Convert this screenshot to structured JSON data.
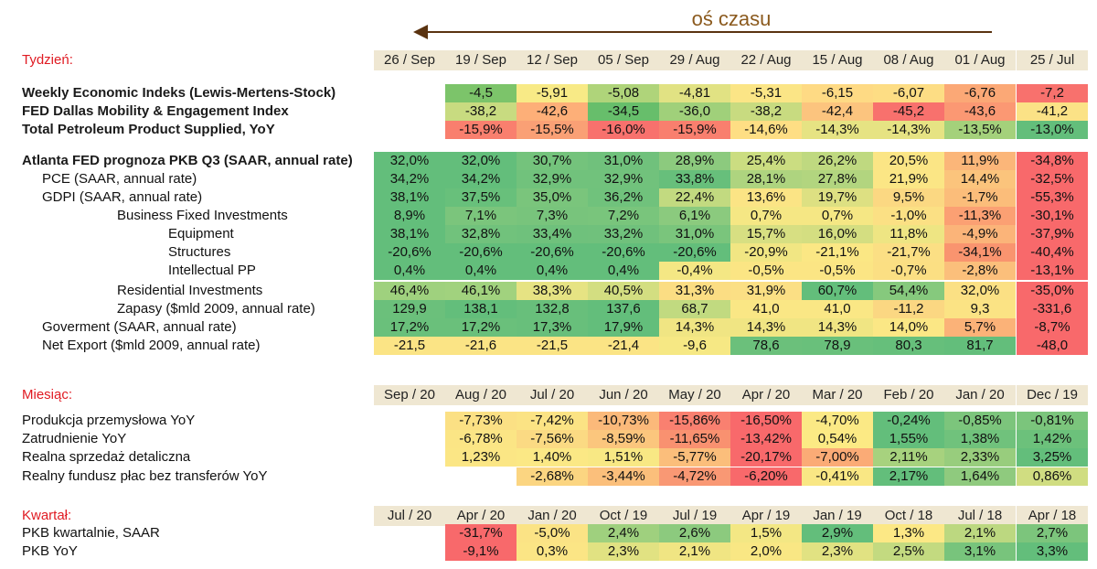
{
  "axis_label": "oś czasu",
  "sections": [
    {
      "title": "Tydzień:",
      "headers": [
        "26 / Sep",
        "19 / Sep",
        "12 / Sep",
        "05 / Sep",
        "29 / Aug",
        "22 / Aug",
        "15 / Aug",
        "08 / Aug",
        "01 / Aug",
        "25 / Jul"
      ],
      "rows": [
        {
          "label": "Weekly Economic Indeks (Lewis-Mertens-Stock)",
          "bold": true,
          "indent": 0,
          "values": [
            "",
            "-4,5",
            "-5,91",
            "-5,08",
            "-4,81",
            "-5,31",
            "-6,15",
            "-6,07",
            "-6,76",
            "-7,2"
          ],
          "colors": [
            "",
            "#7CC46A",
            "#F8EA86",
            "#AFD47A",
            "#E1E283",
            "#FBE586",
            "#FEDA84",
            "#FDDD84",
            "#FBA876",
            "#F8716D"
          ]
        },
        {
          "label": "FED Dallas Mobility & Engagement Index",
          "bold": true,
          "indent": 0,
          "values": [
            "",
            "-38,2",
            "-42,6",
            "-34,5",
            "-36,0",
            "-38,2",
            "-42,4",
            "-45,2",
            "-43,6",
            "-41,2"
          ],
          "colors": [
            "",
            "#C8DB80",
            "#FDAF78",
            "#67BE6B",
            "#A0D07A",
            "#C8DB80",
            "#FCC47E",
            "#F8716D",
            "#FB9873",
            "#FBE286"
          ]
        },
        {
          "label": "Total Petroleum Product Supplied, YoY",
          "bold": true,
          "indent": 0,
          "values": [
            "",
            "-15,9%",
            "-15,5%",
            "-16,0%",
            "-15,9%",
            "-14,6%",
            "-14,3%",
            "-14,3%",
            "-13,5%",
            "-13,0%"
          ],
          "colors": [
            "",
            "#F97F6E",
            "#FAA075",
            "#F8716D",
            "#F97F6E",
            "#FEDE84",
            "#E6E383",
            "#E6E383",
            "#A4D17B",
            "#63BE7B"
          ]
        },
        {
          "label": "Atlanta FED prognoza PKB Q3 (SAAR, annual rate)",
          "bold": true,
          "indent": 0,
          "values": [
            "32,0%",
            "32,0%",
            "30,7%",
            "31,0%",
            "28,9%",
            "25,4%",
            "26,2%",
            "20,5%",
            "11,9%",
            "-34,8%"
          ],
          "colors": [
            "#63BE7B",
            "#63BE7B",
            "#74C37C",
            "#70C17C",
            "#8CCA7E",
            "#CBDD81",
            "#BFD980",
            "#FBE585",
            "#FBB679",
            "#F8696B"
          ]
        },
        {
          "label": "PCE (SAAR, annual rate)",
          "bold": false,
          "indent": 1,
          "values": [
            "34,2%",
            "34,2%",
            "32,9%",
            "32,9%",
            "33,8%",
            "28,1%",
            "27,8%",
            "21,9%",
            "14,4%",
            "-32,5%"
          ],
          "colors": [
            "#63BE7B",
            "#63BE7B",
            "#71C27C",
            "#71C27C",
            "#67BF7B",
            "#AED47F",
            "#B2D57F",
            "#FBE685",
            "#FBC47C",
            "#F8696B"
          ]
        },
        {
          "label": "GDPI (SAAR, annual rate)",
          "bold": false,
          "indent": 1,
          "values": [
            "38,1%",
            "37,5%",
            "35,0%",
            "36,2%",
            "22,4%",
            "13,6%",
            "19,7%",
            "9,5%",
            "-1,7%",
            "-55,3%"
          ],
          "colors": [
            "#63BE7B",
            "#68C07B",
            "#7AC57C",
            "#70C27C",
            "#C2DA80",
            "#FBE485",
            "#DDE082",
            "#FBD882",
            "#FBBD7A",
            "#F8696B"
          ]
        },
        {
          "label": "Business Fixed Investments",
          "bold": false,
          "indent": 2,
          "values": [
            "8,9%",
            "7,1%",
            "7,3%",
            "7,2%",
            "6,1%",
            "0,7%",
            "0,7%",
            "-1,0%",
            "-11,3%",
            "-30,1%"
          ],
          "colors": [
            "#63BE7B",
            "#7BC57C",
            "#78C47C",
            "#79C57C",
            "#8BCA7E",
            "#F5E784",
            "#F5E784",
            "#FBE084",
            "#FBA073",
            "#F8696B"
          ]
        },
        {
          "label": "Equipment",
          "bold": false,
          "indent": 3,
          "values": [
            "38,1%",
            "32,8%",
            "33,4%",
            "33,2%",
            "31,0%",
            "15,7%",
            "16,0%",
            "11,8%",
            "-4,9%",
            "-37,9%"
          ],
          "colors": [
            "#63BE7B",
            "#71C27C",
            "#6FC17C",
            "#70C17C",
            "#7AC57C",
            "#D7DF82",
            "#D4DE81",
            "#EEE583",
            "#FBB479",
            "#F8696B"
          ]
        },
        {
          "label": "Structures",
          "bold": false,
          "indent": 3,
          "values": [
            "-20,6%",
            "-20,6%",
            "-20,6%",
            "-20,6%",
            "-20,6%",
            "-20,9%",
            "-21,1%",
            "-21,7%",
            "-34,1%",
            "-40,4%"
          ],
          "colors": [
            "#63BE7B",
            "#63BE7B",
            "#63BE7B",
            "#63BE7B",
            "#63BE7B",
            "#F1E683",
            "#FBE784",
            "#FBDF84",
            "#F9946F",
            "#F8696B"
          ]
        },
        {
          "label": "Intellectual PP",
          "bold": false,
          "indent": 3,
          "values": [
            "0,4%",
            "0,4%",
            "0,4%",
            "0,4%",
            "-0,4%",
            "-0,5%",
            "-0,5%",
            "-0,7%",
            "-2,8%",
            "-13,1%"
          ],
          "colors": [
            "#63BE7B",
            "#63BE7B",
            "#63BE7B",
            "#63BE7B",
            "#F4E784",
            "#FBE584",
            "#FBE584",
            "#FBDF83",
            "#FBBF7B",
            "#F8696B"
          ]
        },
        {
          "label": "Residential Investments",
          "bold": false,
          "indent": 2,
          "values": [
            "46,4%",
            "46,1%",
            "38,3%",
            "40,5%",
            "31,3%",
            "31,9%",
            "60,7%",
            "54,4%",
            "32,0%",
            "-35,0%"
          ],
          "colors": [
            "#9FD17E",
            "#A1D27E",
            "#E6E383",
            "#D3DE81",
            "#FBDD83",
            "#FBDF84",
            "#63BE7B",
            "#86C97D",
            "#FBE084",
            "#F8696B"
          ]
        },
        {
          "label": "Zapasy ($mld 2009, annual rate)",
          "bold": false,
          "indent": 2,
          "values": [
            "129,9",
            "138,1",
            "132,8",
            "137,6",
            "68,7",
            "41,0",
            "41,0",
            "-11,2",
            "9,3",
            "-331,6"
          ],
          "colors": [
            "#6BC07B",
            "#63BE7B",
            "#68BF7B",
            "#63BE7B",
            "#C1DA80",
            "#FAE785",
            "#FAE785",
            "#FBD782",
            "#FBE384",
            "#F8696B"
          ]
        },
        {
          "label": "Goverment (SAAR, annual rate)",
          "bold": false,
          "indent": 1,
          "values": [
            "17,2%",
            "17,2%",
            "17,3%",
            "17,9%",
            "14,3%",
            "14,3%",
            "14,3%",
            "14,0%",
            "5,7%",
            "-8,7%"
          ],
          "colors": [
            "#6AC07B",
            "#6AC07B",
            "#68BF7B",
            "#63BE7B",
            "#F0E583",
            "#F0E583",
            "#F0E583",
            "#FBE785",
            "#FBB278",
            "#F8696B"
          ]
        },
        {
          "label": "Net Export ($mld 2009, annual rate)",
          "bold": false,
          "indent": 1,
          "values": [
            "-21,5",
            "-21,6",
            "-21,5",
            "-21,4",
            "-9,6",
            "78,6",
            "78,9",
            "80,3",
            "81,7",
            "-48,0"
          ],
          "colors": [
            "#FBE485",
            "#FBE485",
            "#FBE485",
            "#FBE485",
            "#F6E884",
            "#6BC07B",
            "#69C07B",
            "#66BF7B",
            "#63BE7B",
            "#F8696B"
          ]
        }
      ]
    },
    {
      "title": "Miesiąc:",
      "headers": [
        "Sep / 20",
        "Aug / 20",
        "Jul / 20",
        "Jun / 20",
        "May / 20",
        "Apr / 20",
        "Mar / 20",
        "Feb / 20",
        "Jan / 20",
        "Dec / 19"
      ],
      "rows": [
        {
          "label": "Produkcja przemysłowa YoY",
          "bold": false,
          "indent": 0,
          "values": [
            "",
            "-7,73%",
            "-7,42%",
            "-10,73%",
            "-15,86%",
            "-16,50%",
            "-4,70%",
            "-0,24%",
            "-0,85%",
            "-0,81%"
          ],
          "colors": [
            "",
            "#FBE084",
            "#FBE384",
            "#FBB97A",
            "#F98070",
            "#F8696B",
            "#FBE985",
            "#63BE7B",
            "#7CC57C",
            "#7BC57C"
          ]
        },
        {
          "label": "Zatrudnienie YoY",
          "bold": false,
          "indent": 0,
          "values": [
            "",
            "-6,78%",
            "-7,56%",
            "-8,59%",
            "-11,65%",
            "-13,42%",
            "0,54%",
            "1,55%",
            "1,38%",
            "1,42%"
          ],
          "colors": [
            "",
            "#FBE585",
            "#FBDA83",
            "#FBC67D",
            "#F99170",
            "#F8696B",
            "#FCEA84",
            "#63BE7B",
            "#70C27C",
            "#6CC17B"
          ]
        },
        {
          "label": "Realna sprzedaż detaliczna",
          "bold": false,
          "indent": 0,
          "values": [
            "",
            "1,23%",
            "1,40%",
            "1,51%",
            "-5,77%",
            "-20,17%",
            "-7,00%",
            "2,11%",
            "2,33%",
            "3,25%"
          ],
          "colors": [
            "",
            "#FBE685",
            "#FBE885",
            "#F8E884",
            "#FBBE7B",
            "#F8696B",
            "#FBAB76",
            "#A7D27E",
            "#98CD7D",
            "#63BE7B"
          ]
        },
        {
          "label": "Realny fundusz płac bez transferów YoY",
          "bold": false,
          "indent": 0,
          "values": [
            "",
            "",
            "-2,68%",
            "-3,44%",
            "-4,72%",
            "-6,20%",
            "-0,41%",
            "2,17%",
            "1,64%",
            "0,86%"
          ],
          "colors": [
            "",
            "",
            "#FBD581",
            "#FBBF7B",
            "#F99874",
            "#F8696B",
            "#F9E784",
            "#63BE7B",
            "#8FCA7E",
            "#D0DD81"
          ]
        }
      ]
    },
    {
      "title": "Kwartał:",
      "headers": [
        "Jul / 20",
        "Apr / 20",
        "Jan / 20",
        "Oct / 19",
        "Jul / 19",
        "Apr / 19",
        "Jan / 19",
        "Oct / 18",
        "Jul / 18",
        "Apr / 18"
      ],
      "rows": [
        {
          "label": "PKB kwartalnie, SAAR",
          "bold": false,
          "indent": 0,
          "values": [
            "",
            "-31,7%",
            "-5,0%",
            "2,4%",
            "2,6%",
            "1,5%",
            "2,9%",
            "1,3%",
            "2,1%",
            "2,7%"
          ],
          "colors": [
            "",
            "#F8696B",
            "#FBE385",
            "#9FD07E",
            "#8CCA7E",
            "#F3E784",
            "#63BE7B",
            "#FCE885",
            "#BCD880",
            "#7CC57C"
          ]
        },
        {
          "label": "PKB YoY",
          "bold": false,
          "indent": 0,
          "values": [
            "",
            "-9,1%",
            "0,3%",
            "2,3%",
            "2,1%",
            "2,0%",
            "2,3%",
            "2,5%",
            "3,1%",
            "3,3%"
          ],
          "colors": [
            "",
            "#F8696B",
            "#FBE585",
            "#E1E282",
            "#F0E583",
            "#F9E784",
            "#E1E282",
            "#C3DA80",
            "#78C47C",
            "#63BE7B"
          ]
        }
      ]
    }
  ]
}
